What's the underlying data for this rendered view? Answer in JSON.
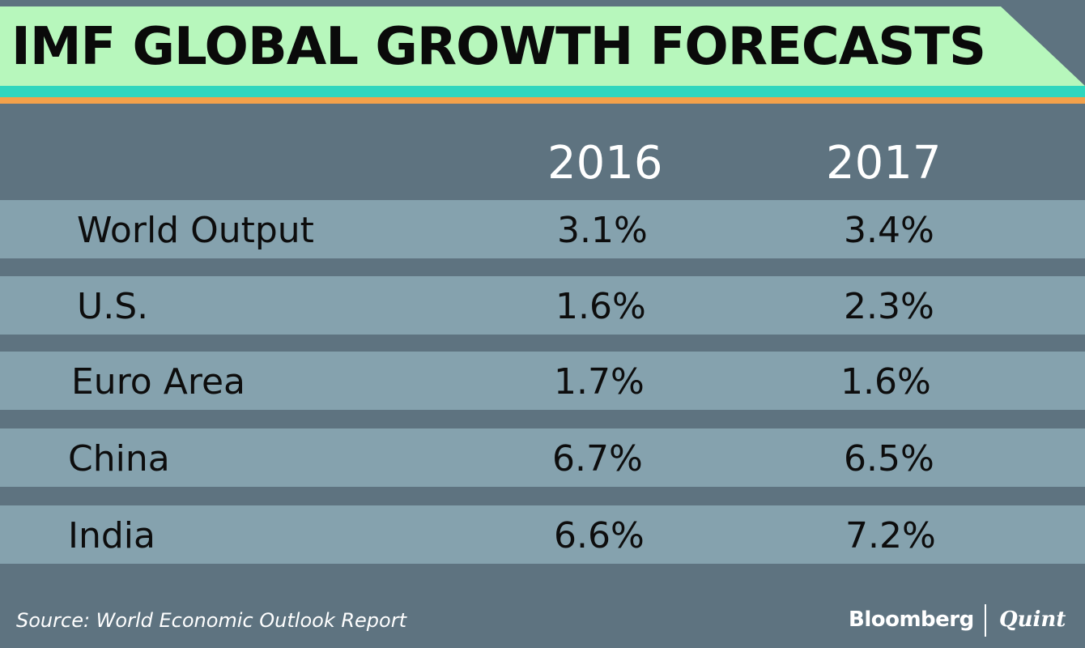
{
  "chart_data": {
    "type": "table",
    "title": "IMF GLOBAL GROWTH FORECASTS",
    "columns": [
      "2016",
      "2017"
    ],
    "rows": [
      {
        "label": "World Output",
        "values": [
          "3.1%",
          "3.4%"
        ]
      },
      {
        "label": "U.S.",
        "values": [
          "1.6%",
          "2.3%"
        ]
      },
      {
        "label": "Euro Area",
        "values": [
          "1.7%",
          "1.6%"
        ]
      },
      {
        "label": "China",
        "values": [
          "6.7%",
          "6.5%"
        ]
      },
      {
        "label": "India",
        "values": [
          "6.6%",
          "7.2%"
        ]
      }
    ],
    "source": "Source: World Economic Outlook Report"
  },
  "branding": {
    "primary": "Bloomberg",
    "secondary": "Quint"
  },
  "colors": {
    "background": "#5e7380",
    "row_fill": "#85a2ae",
    "banner_green": "#b7f7bc",
    "banner_teal": "#2fd6be",
    "banner_orange": "#f4a14a"
  }
}
